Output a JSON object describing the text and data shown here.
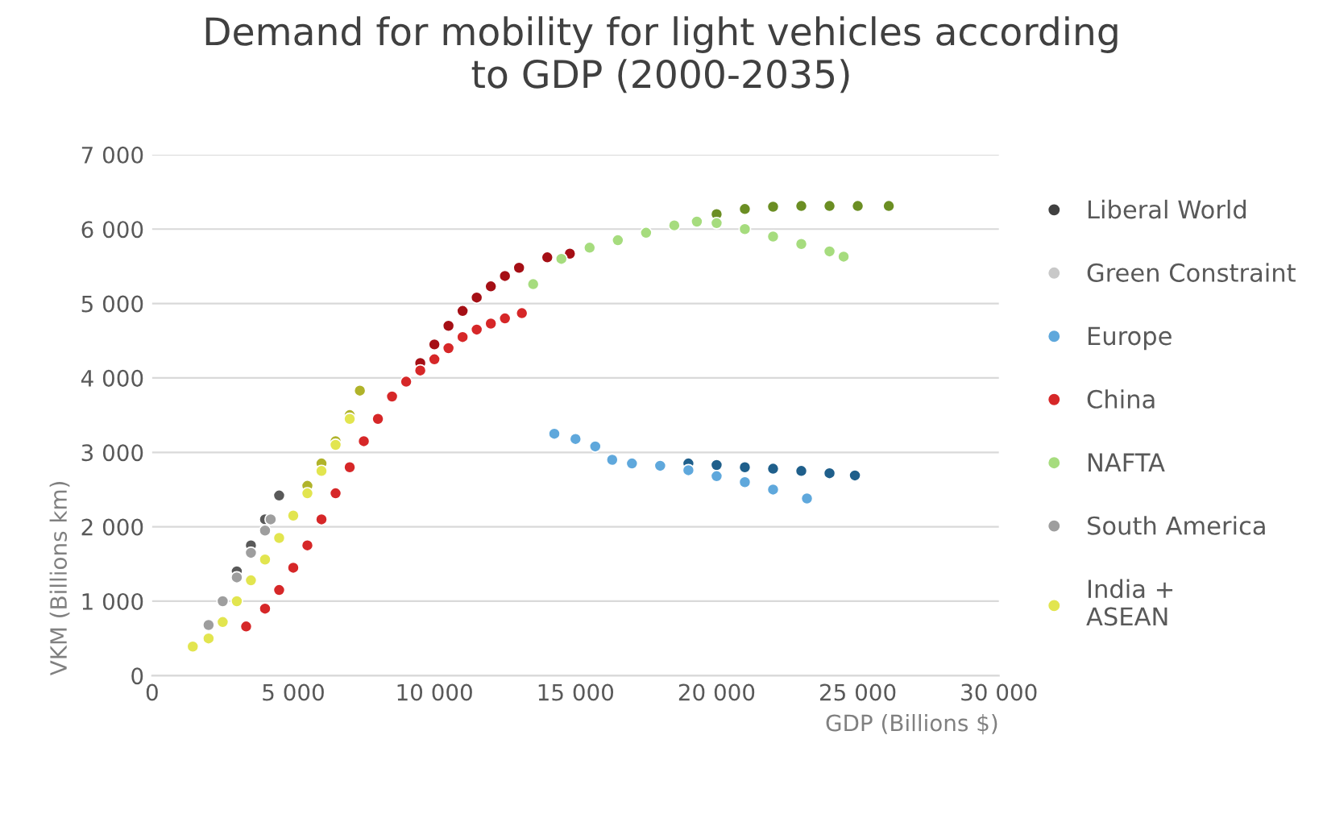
{
  "chart_data": {
    "type": "scatter",
    "title": "Demand for mobility for light vehicles according\nto GDP (2000-2035)",
    "xlabel": "GDP (Billions $)",
    "ylabel": "VKM (Billions km)",
    "xlim": [
      0,
      30000
    ],
    "ylim": [
      0,
      7000
    ],
    "xticks": [
      0,
      {
        "value": 5000,
        "label": "5 000"
      },
      {
        "value": 10000,
        "label": "10 000"
      },
      {
        "value": 15000,
        "label": "15 000"
      },
      {
        "value": 20000,
        "label": "20 000"
      },
      {
        "value": 25000,
        "label": "25 000"
      },
      {
        "value": 30000,
        "label": "30 000"
      }
    ],
    "yticks": [
      0,
      {
        "value": 1000,
        "label": "1 000"
      },
      {
        "value": 2000,
        "label": "2 000"
      },
      {
        "value": 3000,
        "label": "3 000"
      },
      {
        "value": 4000,
        "label": "4 000"
      },
      {
        "value": 5000,
        "label": "5 000"
      },
      {
        "value": 6000,
        "label": "6 000"
      },
      {
        "value": 7000,
        "label": "7 000"
      }
    ],
    "grid": "y",
    "legend": "right",
    "marker": "circle",
    "series": [
      {
        "name": "Liberal World",
        "color": "#404040"
      },
      {
        "name": "Green Constraint",
        "color": "#c8c8c8"
      },
      {
        "color": "#1f5f8b",
        "x": [
          19000,
          20000,
          21000,
          22000,
          23000,
          24000,
          24900
        ],
        "values": [
          2850,
          2830,
          2800,
          2780,
          2750,
          2720,
          2690
        ]
      },
      {
        "name": "Europe",
        "color": "#5fa8dc",
        "x": [
          14250,
          15000,
          15700,
          16300,
          17000,
          18000,
          19000,
          20000,
          21000,
          22000,
          23200
        ],
        "values": [
          3250,
          3180,
          3080,
          2900,
          2850,
          2820,
          2760,
          2680,
          2600,
          2500,
          2380
        ]
      },
      {
        "color": "#a50f15",
        "x": [
          9500,
          10000,
          10500,
          11000,
          11500,
          12000,
          12500,
          13000,
          14000,
          14800
        ],
        "values": [
          4200,
          4450,
          4700,
          4900,
          5080,
          5230,
          5370,
          5480,
          5620,
          5670
        ]
      },
      {
        "name": "China",
        "color": "#d62728",
        "x": [
          3330,
          4000,
          4500,
          5000,
          5500,
          6000,
          6500,
          7000,
          7500,
          8000,
          8500,
          9000,
          9500,
          10000,
          10500,
          11000,
          11500,
          12000,
          12500,
          13100
        ],
        "values": [
          660,
          900,
          1150,
          1450,
          1750,
          2100,
          2450,
          2800,
          3150,
          3450,
          3750,
          3950,
          4100,
          4250,
          4400,
          4550,
          4650,
          4730,
          4800,
          4870
        ]
      },
      {
        "color": "#6b8e23",
        "x": [
          20000,
          21000,
          22000,
          23000,
          24000,
          25000,
          26100
        ],
        "values": [
          6200,
          6270,
          6300,
          6310,
          6310,
          6310,
          6310
        ]
      },
      {
        "name": "NAFTA",
        "color": "#a6dc7e",
        "x": [
          13500,
          14500,
          15500,
          16500,
          17500,
          18500,
          19300,
          20000,
          21000,
          22000,
          23000,
          24000,
          24500
        ],
        "values": [
          5260,
          5600,
          5750,
          5850,
          5950,
          6050,
          6100,
          6080,
          6000,
          5900,
          5800,
          5700,
          5630
        ]
      },
      {
        "color": "#595959",
        "x": [
          3000,
          3500,
          4000,
          4500
        ],
        "values": [
          1400,
          1750,
          2100,
          2420
        ]
      },
      {
        "name": "South America",
        "color": "#9e9e9e",
        "x": [
          2000,
          2500,
          3000,
          3500,
          4000,
          4200
        ],
        "values": [
          680,
          1000,
          1320,
          1650,
          1950,
          2100
        ]
      },
      {
        "color": "#b0b32a",
        "x": [
          5500,
          6000,
          6500,
          7000,
          7360
        ],
        "values": [
          2550,
          2850,
          3150,
          3500,
          3830
        ]
      },
      {
        "name": "India +\nASEAN",
        "color": "#e2e54f",
        "x": [
          1440,
          2000,
          2500,
          3000,
          3500,
          4000,
          4500,
          5000,
          5500,
          6000,
          6500,
          7000
        ],
        "values": [
          390,
          500,
          720,
          1000,
          1280,
          1560,
          1850,
          2150,
          2450,
          2750,
          3100,
          3450
        ]
      }
    ]
  }
}
